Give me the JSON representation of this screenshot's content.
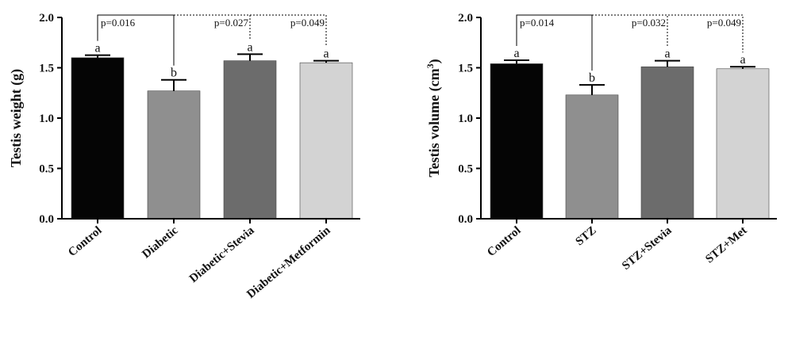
{
  "chart_data": [
    {
      "type": "bar",
      "ylabel": "Testis weight (g)",
      "ylabel_sup": "",
      "ylabel_end": "",
      "ylim": [
        0,
        2.0
      ],
      "yticks": [
        "0.0",
        "0.5",
        "1.0",
        "1.5",
        "2.0"
      ],
      "categories": [
        "Control",
        "Diabetic",
        "Diabetic+Stevia",
        "Diabetic+Metformin"
      ],
      "values": [
        1.6,
        1.27,
        1.57,
        1.55
      ],
      "errors": [
        0.025,
        0.11,
        0.065,
        0.02
      ],
      "letters": [
        "a",
        "b",
        "a",
        "a"
      ],
      "colors": [
        "#050505",
        "#8f8f8f",
        "#6c6c6c",
        "#d3d3d3"
      ],
      "comparisons": [
        {
          "from": 0,
          "to": 1,
          "label": "p=0.016",
          "style": "solid"
        },
        {
          "from": 1,
          "to": 2,
          "label": "p=0.027",
          "style": "dotted"
        },
        {
          "from": 1,
          "to": 3,
          "label": "p=0.049",
          "style": "dotted"
        }
      ]
    },
    {
      "type": "bar",
      "ylabel": "Testis volume (cm",
      "ylabel_sup": "3",
      "ylabel_end": ")",
      "ylim": [
        0,
        2.0
      ],
      "yticks": [
        "0.0",
        "0.5",
        "1.0",
        "1.5",
        "2.0"
      ],
      "categories": [
        "Control",
        "STZ",
        "STZ+Stevia",
        "STZ+Met"
      ],
      "values": [
        1.54,
        1.23,
        1.51,
        1.49
      ],
      "errors": [
        0.035,
        0.1,
        0.06,
        0.02
      ],
      "letters": [
        "a",
        "b",
        "a",
        "a"
      ],
      "colors": [
        "#050505",
        "#8f8f8f",
        "#6c6c6c",
        "#d3d3d3"
      ],
      "comparisons": [
        {
          "from": 0,
          "to": 1,
          "label": "p=0.014",
          "style": "solid"
        },
        {
          "from": 1,
          "to": 2,
          "label": "p=0.032",
          "style": "dotted"
        },
        {
          "from": 1,
          "to": 3,
          "label": "p=0.049",
          "style": "dotted"
        }
      ]
    }
  ]
}
